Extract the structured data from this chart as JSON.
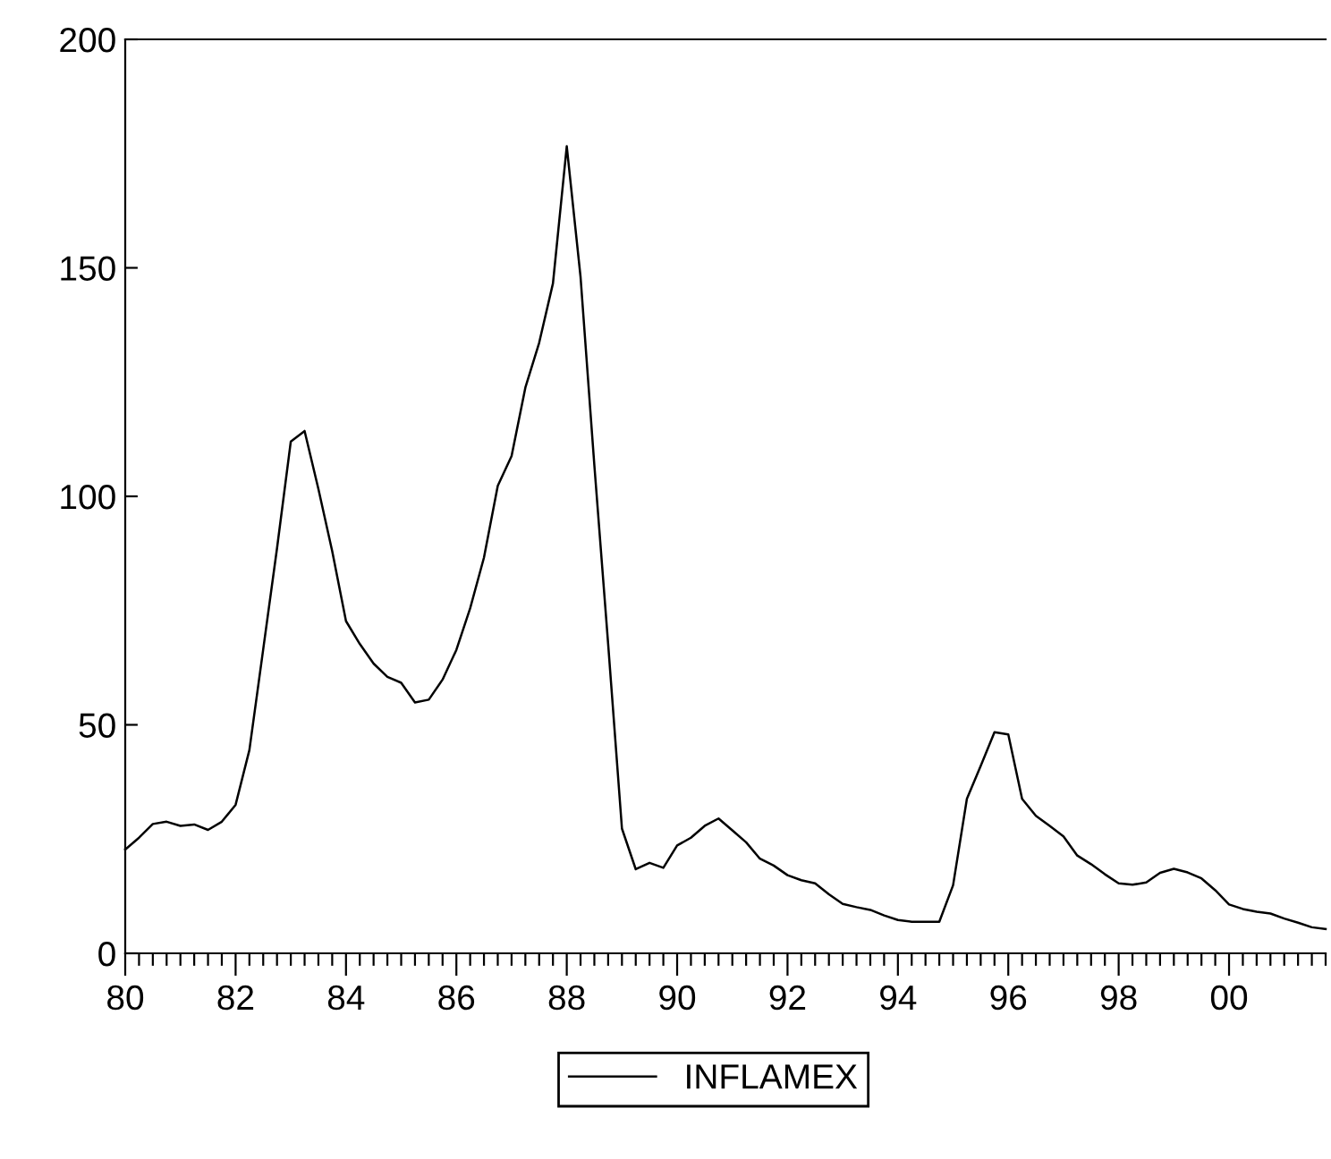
{
  "chart_data": {
    "type": "line",
    "x": [
      1980.0,
      1980.25,
      1980.5,
      1980.75,
      1981.0,
      1981.25,
      1981.5,
      1981.75,
      1982.0,
      1982.25,
      1982.5,
      1982.75,
      1983.0,
      1983.25,
      1983.5,
      1983.75,
      1984.0,
      1984.25,
      1984.5,
      1984.75,
      1985.0,
      1985.25,
      1985.5,
      1985.75,
      1986.0,
      1986.25,
      1986.5,
      1986.75,
      1987.0,
      1987.25,
      1987.5,
      1987.75,
      1988.0,
      1988.25,
      1988.5,
      1988.75,
      1989.0,
      1989.25,
      1989.5,
      1989.75,
      1990.0,
      1990.25,
      1990.5,
      1990.75,
      1991.0,
      1991.25,
      1991.5,
      1991.75,
      1992.0,
      1992.25,
      1992.5,
      1992.75,
      1993.0,
      1993.25,
      1993.5,
      1993.75,
      1994.0,
      1994.25,
      1994.5,
      1994.75,
      1995.0,
      1995.25,
      1995.5,
      1995.75,
      1996.0,
      1996.25,
      1996.5,
      1996.75,
      1997.0,
      1997.25,
      1997.5,
      1997.75,
      1998.0,
      1998.25,
      1998.5,
      1998.75,
      1999.0,
      1999.25,
      1999.5,
      1999.75,
      2000.0,
      2000.25,
      2000.5,
      2000.75,
      2001.0,
      2001.25,
      2001.5,
      2001.75
    ],
    "series": [
      {
        "name": "INFLAMEX",
        "color": "#000000",
        "values": [
          22.7,
          25.3,
          28.3,
          28.8,
          27.9,
          28.2,
          27,
          28.8,
          32.5,
          44.5,
          66.5,
          88.6,
          112,
          114.3,
          101.6,
          88,
          72.7,
          67.7,
          63.4,
          60.5,
          59.2,
          54.9,
          55.5,
          59.9,
          66.4,
          75.5,
          86.6,
          102.3,
          108.8,
          123.8,
          133.6,
          146.6,
          176.6,
          148,
          106.8,
          67.7,
          27.3,
          18.4,
          19.8,
          18.7,
          23.6,
          25.3,
          27.9,
          29.5,
          26.9,
          24.3,
          20.7,
          19.2,
          17.1,
          16,
          15.3,
          12.9,
          10.8,
          10.1,
          9.5,
          8.3,
          7.3,
          6.9,
          6.9,
          6.9,
          14.9,
          33.8,
          41,
          48.4,
          47.9,
          33.8,
          30.1,
          27.9,
          25.6,
          21.4,
          19.5,
          17.3,
          15.3,
          15,
          15.5,
          17.6,
          18.5,
          17.7,
          16.4,
          13.8,
          10.7,
          9.7,
          9.1,
          8.7,
          7.6,
          6.7,
          5.7,
          5.3
        ]
      }
    ],
    "xlim": [
      1980,
      2001.75
    ],
    "xticks": [
      {
        "value": 1980,
        "label": "80"
      },
      {
        "value": 1982,
        "label": "82"
      },
      {
        "value": 1984,
        "label": "84"
      },
      {
        "value": 1986,
        "label": "86"
      },
      {
        "value": 1988,
        "label": "88"
      },
      {
        "value": 1990,
        "label": "90"
      },
      {
        "value": 1992,
        "label": "92"
      },
      {
        "value": 1994,
        "label": "94"
      },
      {
        "value": 1996,
        "label": "96"
      },
      {
        "value": 1998,
        "label": "98"
      },
      {
        "value": 2000,
        "label": "00"
      }
    ],
    "ylim": [
      0,
      200
    ],
    "yticks": [
      0,
      50,
      100,
      150,
      200
    ],
    "grid": false,
    "legend": "bottom",
    "marker": "none",
    "line_style": "solid"
  }
}
